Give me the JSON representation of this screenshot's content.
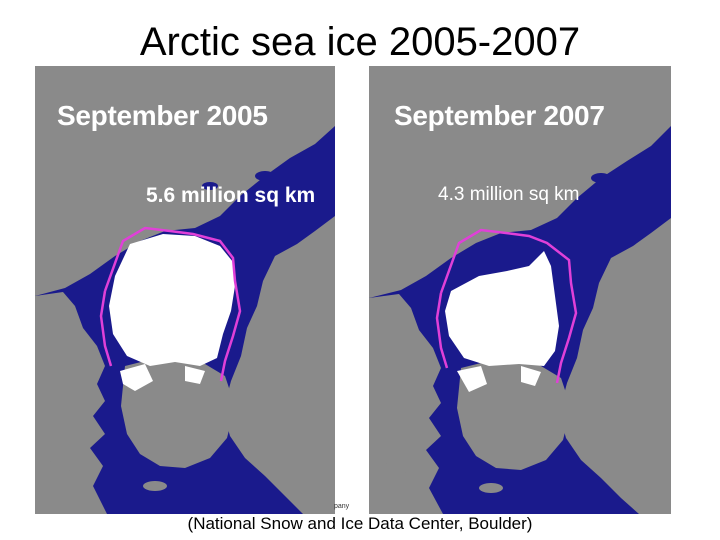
{
  "title": "Arctic sea ice 2005-2007",
  "maps": [
    {
      "heading": "September 2005",
      "extent_label": "5.6 million sq km",
      "extent_million_sq_km": 5.6
    },
    {
      "heading": "September 2007",
      "extent_label": "4.3 million sq km",
      "extent_million_sq_km": 4.3
    }
  ],
  "credit_fragment": "pany",
  "source": {
    "open_paren": "(",
    "text": "National Snow and Ice Data Center, Boulder",
    "close_paren": ")"
  },
  "colors": {
    "ocean": "#1a1a8c",
    "land": "#8a8a8a",
    "sea_ice": "#ffffff",
    "median_extent_line": "#e040d8",
    "page_background": "#ffffff"
  }
}
